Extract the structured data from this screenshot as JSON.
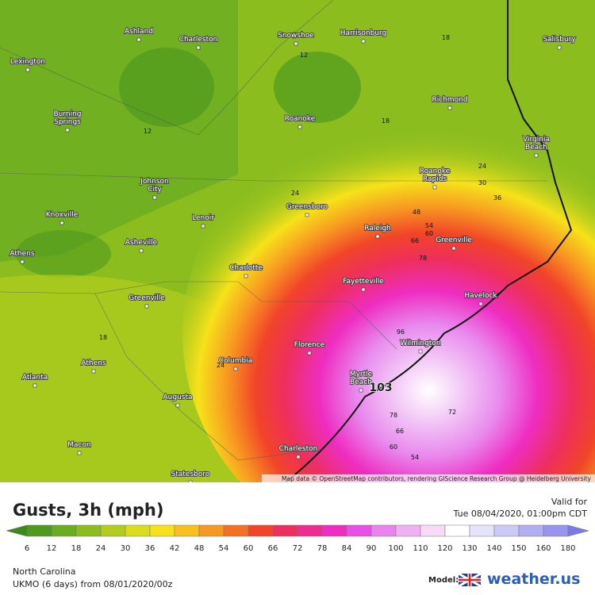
{
  "map": {
    "cities": [
      {
        "lines": [
          "Ashland"
        ]
      },
      {
        "lines": [
          "Charleston"
        ]
      },
      {
        "lines": [
          "Snowshoe"
        ]
      },
      {
        "lines": [
          "Harrisonburg"
        ]
      },
      {
        "lines": [
          "Salisbury"
        ]
      },
      {
        "lines": [
          "Lexington"
        ]
      },
      {
        "lines": [
          "Richmond"
        ]
      },
      {
        "lines": [
          "Burning",
          "Springs"
        ]
      },
      {
        "lines": [
          "Roanoke"
        ]
      },
      {
        "lines": [
          "Virginia",
          "Beach"
        ]
      },
      {
        "lines": [
          "Roanoke",
          "Rapids"
        ]
      },
      {
        "lines": [
          "Johnson",
          "City"
        ]
      },
      {
        "lines": [
          "Greensboro"
        ]
      },
      {
        "lines": [
          "Knoxville"
        ]
      },
      {
        "lines": [
          "Lenoir"
        ]
      },
      {
        "lines": [
          "Raleigh"
        ]
      },
      {
        "lines": [
          "Greenville"
        ]
      },
      {
        "lines": [
          "Asheville"
        ]
      },
      {
        "lines": [
          "Athens"
        ]
      },
      {
        "lines": [
          "Charlotte"
        ]
      },
      {
        "lines": [
          "Fayetteville"
        ]
      },
      {
        "lines": [
          "Havelock"
        ]
      },
      {
        "lines": [
          "Greenville"
        ]
      },
      {
        "lines": [
          "Florence"
        ]
      },
      {
        "lines": [
          "Wilmington"
        ]
      },
      {
        "lines": [
          "Athens"
        ]
      },
      {
        "lines": [
          "Columbia"
        ]
      },
      {
        "lines": [
          "Atlanta"
        ]
      },
      {
        "lines": [
          "Myrtle",
          "Beach"
        ]
      },
      {
        "lines": [
          "Augusta"
        ]
      },
      {
        "lines": [
          "Macon"
        ]
      },
      {
        "lines": [
          "Charleston"
        ]
      },
      {
        "lines": [
          "Statesboro"
        ]
      }
    ],
    "contour_labels": [
      "12",
      "18",
      "12",
      "18",
      "24",
      "30",
      "36",
      "24",
      "48",
      "54",
      "60",
      "66",
      "78",
      "96",
      "78",
      "72",
      "66",
      "60",
      "54",
      "18",
      "24"
    ],
    "max_label": "103",
    "attribution": "Map data © OpenStreetMap contributors, rendering GIScience Research Group @ Heidelberg University"
  },
  "panel": {
    "title": "Gusts, 3h (mph)",
    "valid_label": "Valid for",
    "valid_time": "Tue 08/04/2020, 01:00pm CDT",
    "scale_labels": [
      "6",
      "12",
      "18",
      "24",
      "30",
      "36",
      "42",
      "48",
      "54",
      "60",
      "66",
      "72",
      "78",
      "84",
      "90",
      "100",
      "110",
      "120",
      "130",
      "140",
      "150",
      "160",
      "180"
    ],
    "scale_colors": [
      "#3a8a1a",
      "#4e9a1e",
      "#6aad20",
      "#8cbd1f",
      "#b2cd1d",
      "#dadd1a",
      "#f6e21a",
      "#f9c01d",
      "#f79821",
      "#f47024",
      "#f14428",
      "#ee2f5d",
      "#ed2b90",
      "#ee2dc1",
      "#e84fe6",
      "#e984ee",
      "#eeb2f3",
      "#f6daf8",
      "#ffffff",
      "#e4e3fb",
      "#cbc9f6",
      "#b1aff2",
      "#9895ee",
      "#7c78e8"
    ],
    "region": "North Carolina",
    "model_run": "UKMO (6 days) from 08/01/2020/00z",
    "model_label": "Model:",
    "brand": "weather.us"
  }
}
